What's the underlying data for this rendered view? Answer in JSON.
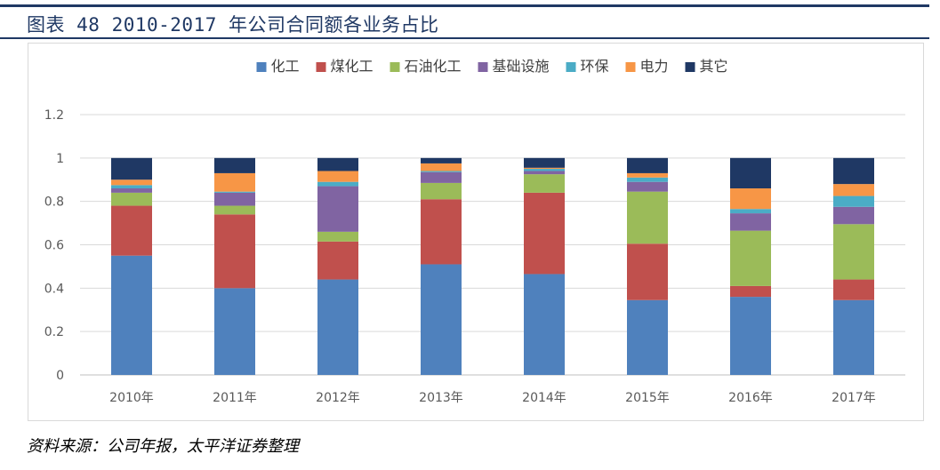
{
  "figure": {
    "title": "图表 48 2010-2017 年公司合同额各业务占比",
    "source": "资料来源：公司年报，太平洋证券整理"
  },
  "chart_data": {
    "type": "bar",
    "stacked": true,
    "categories": [
      "2010年",
      "2011年",
      "2012年",
      "2013年",
      "2014年",
      "2015年",
      "2016年",
      "2017年"
    ],
    "ylim": [
      0,
      1.2
    ],
    "yticks": [
      0,
      0.2,
      0.4,
      0.6,
      0.8,
      1,
      1.2
    ],
    "ytick_labels": [
      "0",
      "0.2",
      "0.4",
      "0.6",
      "0.8",
      "1",
      "1.2"
    ],
    "grid": true,
    "legend_position": "top",
    "series": [
      {
        "name": "化工",
        "color": "#4f81bd",
        "values": [
          0.55,
          0.4,
          0.44,
          0.51,
          0.465,
          0.345,
          0.36,
          0.345
        ]
      },
      {
        "name": "煤化工",
        "color": "#c0504d",
        "values": [
          0.23,
          0.34,
          0.175,
          0.3,
          0.375,
          0.26,
          0.05,
          0.095
        ]
      },
      {
        "name": "石油化工",
        "color": "#9bbb59",
        "values": [
          0.06,
          0.04,
          0.045,
          0.075,
          0.085,
          0.24,
          0.255,
          0.255
        ]
      },
      {
        "name": "基础设施",
        "color": "#8064a2",
        "values": [
          0.02,
          0.06,
          0.21,
          0.05,
          0.015,
          0.045,
          0.08,
          0.08
        ]
      },
      {
        "name": "环保",
        "color": "#4bacc6",
        "values": [
          0.015,
          0.005,
          0.02,
          0.005,
          0.01,
          0.02,
          0.02,
          0.05
        ]
      },
      {
        "name": "电力",
        "color": "#f79646",
        "values": [
          0.025,
          0.085,
          0.05,
          0.035,
          0.005,
          0.02,
          0.095,
          0.055
        ]
      },
      {
        "name": "其它",
        "color": "#1f3864",
        "values": [
          0.1,
          0.07,
          0.06,
          0.025,
          0.045,
          0.07,
          0.14,
          0.12
        ]
      }
    ]
  }
}
